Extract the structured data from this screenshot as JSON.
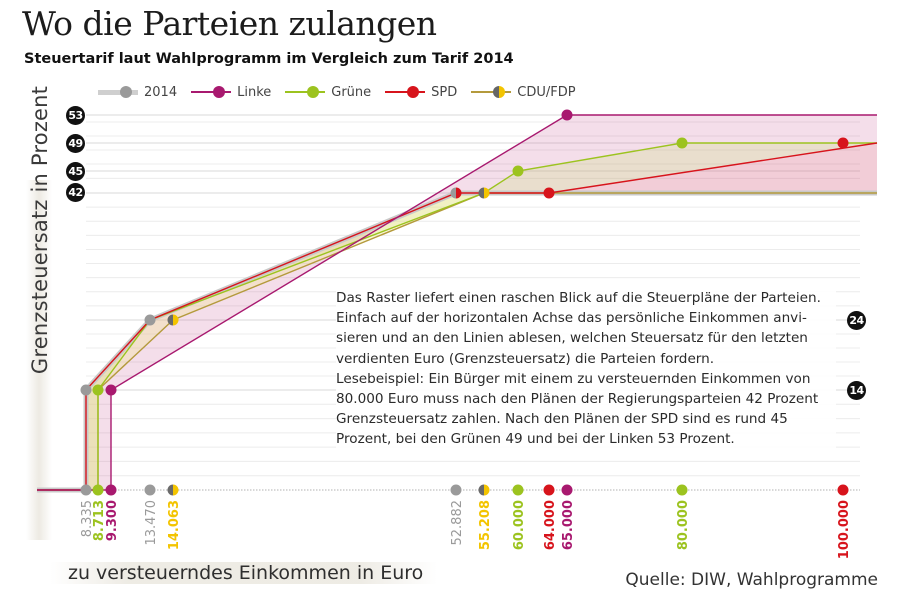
{
  "chart_data": {
    "type": "line",
    "title": "Wo die Parteien zulangen",
    "subtitle": "Steuertarif laut Wahlprogramm im Vergleich zum Tarif 2014",
    "xlabel": "zu versteuerndes Einkommen in Euro",
    "ylabel": "Grenzsteuersatz in Prozent",
    "source": "Quelle: DIW, Wahlprogramme",
    "ylim": [
      0,
      53
    ],
    "xlim": [
      0,
      100000
    ],
    "legend_position": "top",
    "y_badges": [
      "53",
      "49",
      "45",
      "42",
      "24",
      "14"
    ],
    "x_ticks": [
      {
        "value": 8335,
        "label": "8.335",
        "color": "#9a9a9a"
      },
      {
        "value": 8713,
        "label": "8.713",
        "color": "#9cc31f"
      },
      {
        "value": 9300,
        "label": "9.300",
        "color": "#a8196f"
      },
      {
        "value": 13470,
        "label": "13.470",
        "color": "#9a9a9a"
      },
      {
        "value": 14063,
        "label": "14.063",
        "color": "#f3c400"
      },
      {
        "value": 52882,
        "label": "52.882",
        "color": "#9a9a9a"
      },
      {
        "value": 55208,
        "label": "55.208",
        "color": "#f3c400"
      },
      {
        "value": 60000,
        "label": "60.000",
        "color": "#9cc31f"
      },
      {
        "value": 64000,
        "label": "64.000",
        "color": "#d7141c"
      },
      {
        "value": 65000,
        "label": "65.000",
        "color": "#a8196f"
      },
      {
        "value": 80000,
        "label": "80.000",
        "color": "#9cc31f"
      },
      {
        "value": 100000,
        "label": "100.000",
        "color": "#d7141c"
      }
    ],
    "series": [
      {
        "name": "2014",
        "color": "#9a9a9a",
        "points": [
          [
            0,
            0
          ],
          [
            8335,
            0
          ],
          [
            8335,
            14
          ],
          [
            13470,
            24
          ],
          [
            52882,
            42
          ],
          [
            100000,
            42
          ]
        ]
      },
      {
        "name": "Linke",
        "color": "#a8196f",
        "points": [
          [
            0,
            0
          ],
          [
            9300,
            0
          ],
          [
            9300,
            14
          ],
          [
            65000,
            53
          ],
          [
            100000,
            53
          ]
        ]
      },
      {
        "name": "Grüne",
        "color": "#9cc31f",
        "points": [
          [
            0,
            0
          ],
          [
            8713,
            0
          ],
          [
            8713,
            14
          ],
          [
            13470,
            24
          ],
          [
            55208,
            42
          ],
          [
            60000,
            45
          ],
          [
            80000,
            49
          ],
          [
            100000,
            49
          ]
        ]
      },
      {
        "name": "SPD",
        "color": "#d7141c",
        "points": [
          [
            0,
            0
          ],
          [
            8335,
            0
          ],
          [
            8335,
            14
          ],
          [
            13470,
            24
          ],
          [
            52882,
            42
          ],
          [
            64000,
            42
          ],
          [
            100000,
            49
          ]
        ]
      },
      {
        "name": "CDU/FDP",
        "color": "#b49a3c",
        "dot_color": "#f3c400",
        "points": [
          [
            0,
            0
          ],
          [
            8713,
            0
          ],
          [
            8713,
            14
          ],
          [
            14063,
            24
          ],
          [
            55208,
            42
          ],
          [
            100000,
            42
          ]
        ]
      }
    ],
    "markers": [
      {
        "x": 8335,
        "y": 0,
        "style": "gray"
      },
      {
        "x": 8713,
        "y": 0,
        "style": "green"
      },
      {
        "x": 9300,
        "y": 0,
        "style": "magenta"
      },
      {
        "x": 13470,
        "y": 0,
        "style": "gray"
      },
      {
        "x": 14063,
        "y": 0,
        "style": "half"
      },
      {
        "x": 52882,
        "y": 0,
        "style": "gray"
      },
      {
        "x": 55208,
        "y": 0,
        "style": "half"
      },
      {
        "x": 60000,
        "y": 0,
        "style": "green"
      },
      {
        "x": 64000,
        "y": 0,
        "style": "red"
      },
      {
        "x": 65000,
        "y": 0,
        "style": "magenta"
      },
      {
        "x": 80000,
        "y": 0,
        "style": "green"
      },
      {
        "x": 100000,
        "y": 0,
        "style": "red"
      },
      {
        "x": 8335,
        "y": 14,
        "style": "gray"
      },
      {
        "x": 8713,
        "y": 14,
        "style": "green"
      },
      {
        "x": 9300,
        "y": 14,
        "style": "magenta"
      },
      {
        "x": 13470,
        "y": 24,
        "style": "gray"
      },
      {
        "x": 14063,
        "y": 24,
        "style": "half"
      },
      {
        "x": 52882,
        "y": 42,
        "style": "half-red"
      },
      {
        "x": 55208,
        "y": 42,
        "style": "half"
      },
      {
        "x": 64000,
        "y": 42,
        "style": "red"
      },
      {
        "x": 60000,
        "y": 45,
        "style": "green"
      },
      {
        "x": 80000,
        "y": 49,
        "style": "green"
      },
      {
        "x": 100000,
        "y": 49,
        "style": "red"
      },
      {
        "x": 65000,
        "y": 53,
        "style": "magenta"
      }
    ]
  },
  "legend": [
    {
      "label": "2014",
      "color": "#c8c8c8",
      "dot": "#9a9a9a",
      "thick": true
    },
    {
      "label": "Linke",
      "color": "#a8196f",
      "dot": "#a8196f"
    },
    {
      "label": "Grüne",
      "color": "#9cc31f",
      "dot": "#9cc31f"
    },
    {
      "label": "SPD",
      "color": "#d7141c",
      "dot": "#d7141c"
    },
    {
      "label": "CDU/FDP",
      "color": "#b49a3c",
      "dot": "half"
    }
  ],
  "annotation": [
    "Das Raster liefert einen raschen Blick auf die Steuerpläne der Parteien.",
    "Einfach auf der horizontalen Achse das persönliche  Einkommen anvi-",
    "sieren und an den Linien ablesen, welchen Steuersatz für den letzten",
    "verdienten Euro (Grenzsteuersatz) die Parteien fordern.",
    "Lesebeispiel: Ein Bürger mit einem zu versteuernden Einkommen von",
    "80.000 Euro muss nach den Plänen der Regierungsparteien 42 Prozent",
    "Grenzsteuersatz zahlen. Nach den Plänen der SPD sind es rund 45",
    "Prozent, bei den Grünen 49 und bei der Linken 53 Prozent."
  ]
}
